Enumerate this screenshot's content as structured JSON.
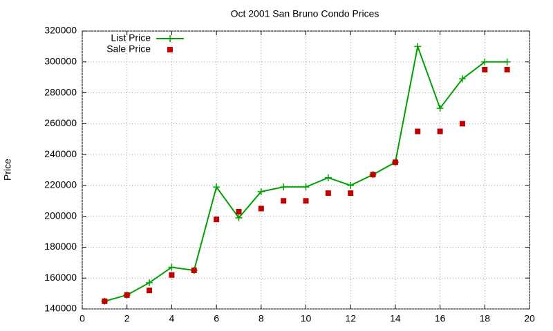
{
  "chart_data": {
    "type": "line",
    "title": "Oct 2001 San Bruno Condo Prices",
    "y_label": "Price",
    "x": [
      1,
      2,
      3,
      4,
      5,
      6,
      7,
      8,
      9,
      10,
      11,
      12,
      13,
      14,
      15,
      16,
      17,
      18,
      19
    ],
    "series": [
      {
        "name": "List Price",
        "color": "#00a000",
        "line": true,
        "marker": "plus",
        "values": [
          145000,
          149000,
          157000,
          167000,
          165000,
          219000,
          199000,
          216000,
          219000,
          219000,
          225000,
          220000,
          227000,
          235000,
          310000,
          270000,
          289000,
          300000,
          300000
        ]
      },
      {
        "name": "Sale Price",
        "color": "#c00000",
        "line": false,
        "marker": "square",
        "values": [
          145000,
          149000,
          152000,
          162000,
          165000,
          198000,
          203000,
          205000,
          210000,
          210000,
          215000,
          215000,
          227000,
          235000,
          255000,
          255000,
          260000,
          295000,
          295000
        ]
      }
    ],
    "xlim": [
      0,
      20
    ],
    "xticks": [
      0,
      2,
      4,
      6,
      8,
      10,
      12,
      14,
      16,
      18,
      20
    ],
    "ylim": [
      140000,
      320000
    ],
    "yticks": [
      140000,
      160000,
      180000,
      200000,
      220000,
      240000,
      260000,
      280000,
      300000,
      320000
    ],
    "grid": true,
    "legend": "top-left"
  }
}
